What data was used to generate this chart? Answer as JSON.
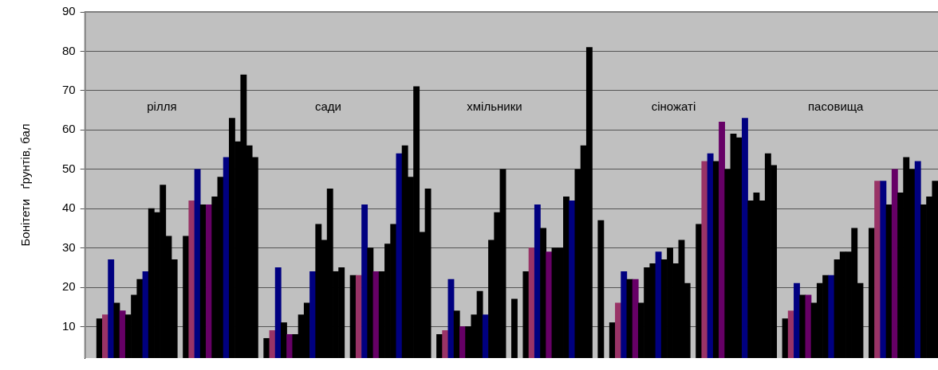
{
  "chart_data": {
    "type": "bar",
    "ylabel": "Бонітети   ґрунтів, бал",
    "annotations": [
      "рілля",
      "сади",
      "хмільники",
      "сіножаті",
      "пасовища"
    ],
    "categories": [
      null,
      null,
      null,
      null,
      null,
      null,
      null,
      null,
      null,
      null,
      null,
      null,
      null,
      null,
      null,
      null,
      null,
      null,
      null,
      null,
      null,
      null,
      null,
      null,
      null,
      null,
      null,
      null,
      null,
      null,
      null,
      null,
      null,
      null,
      null,
      null,
      null,
      null,
      null,
      null,
      null,
      null,
      null,
      null,
      null,
      null,
      null,
      null,
      null,
      null,
      null,
      null,
      null,
      null,
      null,
      null,
      null,
      null,
      null,
      null,
      null,
      null,
      null,
      null,
      null,
      null,
      null,
      null,
      null,
      null,
      null,
      null,
      null,
      null,
      null,
      null,
      null,
      null,
      null,
      null,
      null,
      null,
      null,
      null,
      null,
      null,
      null,
      null,
      null,
      null,
      null,
      null,
      null,
      null,
      null,
      null,
      null,
      null,
      null,
      null,
      null,
      null,
      null,
      null,
      null,
      null,
      null,
      null,
      null,
      null,
      null,
      null,
      null,
      null,
      null,
      null,
      null,
      null,
      null,
      null,
      null,
      null,
      null,
      null,
      null,
      null,
      null,
      null,
      null,
      null,
      null,
      null,
      null,
      null,
      null,
      null,
      null,
      null,
      null,
      null,
      null,
      null,
      null,
      null,
      null,
      null,
      null,
      null
    ],
    "values": [
      null,
      null,
      12,
      13,
      27,
      16,
      14,
      13,
      18,
      22,
      24,
      40,
      39,
      46,
      33,
      27,
      null,
      33,
      42,
      50,
      41,
      41,
      43,
      48,
      53,
      63,
      57,
      74,
      56,
      53,
      null,
      7,
      9,
      25,
      11,
      8,
      8,
      13,
      16,
      24,
      36,
      32,
      45,
      24,
      25,
      null,
      23,
      23,
      41,
      30,
      24,
      24,
      31,
      36,
      54,
      56,
      48,
      71,
      34,
      45,
      null,
      8,
      9,
      22,
      14,
      10,
      10,
      13,
      19,
      13,
      32,
      39,
      50,
      null,
      17,
      null,
      24,
      30,
      41,
      35,
      29,
      30,
      30,
      43,
      42,
      50,
      56,
      81,
      null,
      37,
      null,
      11,
      16,
      24,
      22,
      22,
      16,
      25,
      26,
      29,
      27,
      30,
      26,
      32,
      21,
      null,
      36,
      52,
      54,
      52,
      62,
      50,
      59,
      58,
      63,
      42,
      44,
      42,
      54,
      51,
      null,
      12,
      14,
      21,
      18,
      18,
      16,
      21,
      23,
      23,
      27,
      29,
      29,
      35,
      21,
      null,
      35,
      47,
      47,
      41,
      50,
      44,
      53,
      50,
      52,
      41,
      43,
      47
    ],
    "colors": [
      null,
      null,
      "#000000",
      "#993366",
      "#000080",
      "#000000",
      "#660066",
      "#000000",
      "#000000",
      "#000000",
      "#000080",
      "#000000",
      "#000000",
      "#000000",
      "#000000",
      "#000000",
      null,
      "#000000",
      "#993366",
      "#000080",
      "#000000",
      "#660066",
      "#000000",
      "#000000",
      "#000080",
      "#000000",
      "#000000",
      "#000000",
      "#000000",
      "#000000",
      null,
      "#000000",
      "#993366",
      "#000080",
      "#000000",
      "#660066",
      "#000000",
      "#000000",
      "#000000",
      "#000080",
      "#000000",
      "#000000",
      "#000000",
      "#000000",
      "#000000",
      null,
      "#000000",
      "#993366",
      "#000080",
      "#000000",
      "#660066",
      "#000000",
      "#000000",
      "#000000",
      "#000080",
      "#000000",
      "#000000",
      "#000000",
      "#000000",
      "#000000",
      null,
      "#000000",
      "#993366",
      "#000080",
      "#000000",
      "#660066",
      "#000000",
      "#000000",
      "#000000",
      "#000080",
      "#000000",
      "#000000",
      "#000000",
      null,
      "#000000",
      null,
      "#000000",
      "#993366",
      "#000080",
      "#000000",
      "#660066",
      "#000000",
      "#000000",
      "#000000",
      "#000080",
      "#000000",
      "#000000",
      "#000000",
      null,
      "#000000",
      null,
      "#000000",
      "#993366",
      "#000080",
      "#000000",
      "#660066",
      "#000000",
      "#000000",
      "#000000",
      "#000080",
      "#000000",
      "#000000",
      "#000000",
      "#000000",
      "#000000",
      null,
      "#000000",
      "#993366",
      "#000080",
      "#000000",
      "#660066",
      "#000000",
      "#000000",
      "#000000",
      "#000080",
      "#000000",
      "#000000",
      "#000000",
      "#000000",
      "#000000",
      null,
      "#000000",
      "#993366",
      "#000080",
      "#000000",
      "#660066",
      "#000000",
      "#000000",
      "#000000",
      "#000080",
      "#000000",
      "#000000",
      "#000000",
      "#000000",
      "#000000",
      null,
      "#000000",
      "#993366",
      "#000080",
      "#000000",
      "#660066",
      "#000000",
      "#000000",
      "#000000",
      "#000080",
      "#000000",
      "#000000",
      "#000000"
    ],
    "ylim": [
      2,
      90
    ],
    "yticks": [
      10,
      20,
      30,
      40,
      50,
      60,
      70,
      80,
      90
    ],
    "grid": true
  }
}
